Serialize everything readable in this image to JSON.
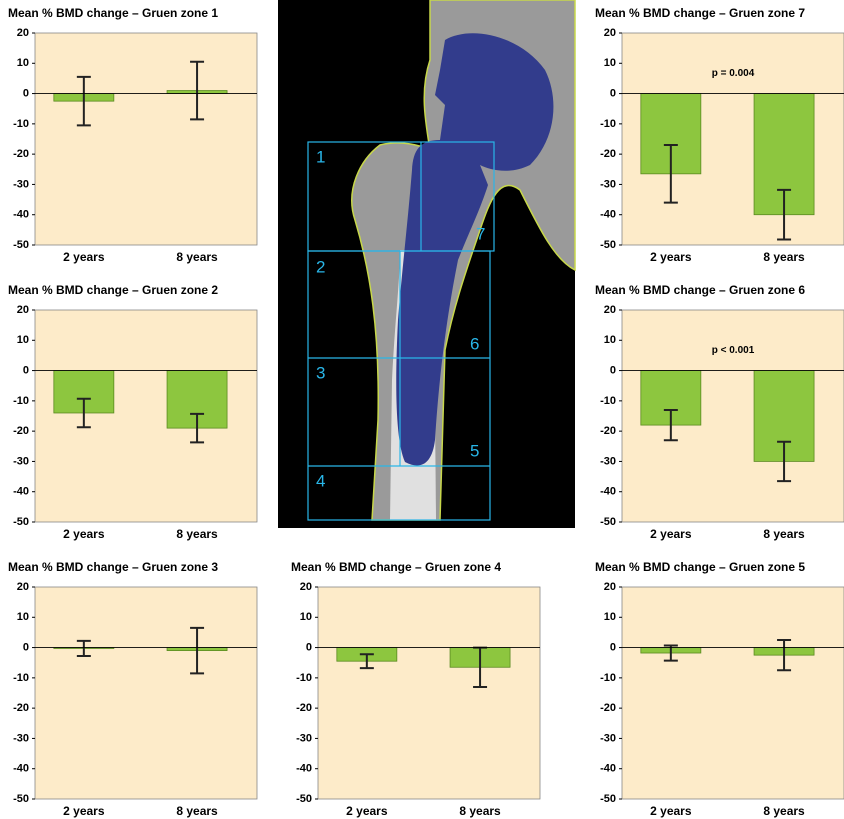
{
  "chart_data": [
    {
      "type": "bar",
      "title": "Mean % BMD change – Gruen zone 1",
      "categories": [
        "2 years",
        "8 years"
      ],
      "values": [
        -2.5,
        1
      ],
      "errors": [
        8,
        9.5
      ],
      "color": "#8dc63f",
      "ylim": [
        -50,
        20
      ],
      "yticks": [
        -50,
        -40,
        -30,
        -20,
        -10,
        0,
        10,
        20
      ]
    },
    {
      "type": "bar",
      "title": "Mean % BMD change – Gruen zone 2",
      "categories": [
        "2 years",
        "8 years"
      ],
      "values": [
        -14,
        -19
      ],
      "errors": [
        4.7,
        4.7
      ],
      "color": "#8dc63f",
      "ylim": [
        -50,
        20
      ],
      "yticks": [
        -50,
        -40,
        -30,
        -20,
        -10,
        0,
        10,
        20
      ]
    },
    {
      "type": "bar",
      "title": "Mean % BMD change – Gruen zone 3",
      "categories": [
        "2 years",
        "8 years"
      ],
      "values": [
        -0.3,
        -1
      ],
      "errors": [
        2.5,
        7.5
      ],
      "color": "#8dc63f",
      "ylim": [
        -50,
        20
      ],
      "yticks": [
        -50,
        -40,
        -30,
        -20,
        -10,
        0,
        10,
        20
      ]
    },
    {
      "type": "bar",
      "title": "Mean % BMD change – Gruen zone 4",
      "categories": [
        "2 years",
        "8 years"
      ],
      "values": [
        -4.5,
        -6.5
      ],
      "errors": [
        2.3,
        6.5
      ],
      "color": "#8dc63f",
      "ylim": [
        -50,
        20
      ],
      "yticks": [
        -50,
        -40,
        -30,
        -20,
        -10,
        0,
        10,
        20
      ]
    },
    {
      "type": "bar",
      "title": "Mean % BMD change – Gruen zone 5",
      "categories": [
        "2 years",
        "8 years"
      ],
      "values": [
        -1.8,
        -2.5
      ],
      "errors": [
        2.5,
        5
      ],
      "color": "#8dc63f",
      "ylim": [
        -50,
        20
      ],
      "yticks": [
        -50,
        -40,
        -30,
        -20,
        -10,
        0,
        10,
        20
      ]
    },
    {
      "type": "bar",
      "title": "Mean % BMD change – Gruen zone 6",
      "categories": [
        "2 years",
        "8 years"
      ],
      "values": [
        -18,
        -30
      ],
      "errors": [
        5,
        6.5
      ],
      "color": "#8dc63f",
      "ylim": [
        -50,
        20
      ],
      "yticks": [
        -50,
        -40,
        -30,
        -20,
        -10,
        0,
        10,
        20
      ],
      "annotation": "p < 0.001"
    },
    {
      "type": "bar",
      "title": "Mean % BMD change – Gruen zone 7",
      "categories": [
        "2 years",
        "8 years"
      ],
      "values": [
        -26.5,
        -40
      ],
      "errors": [
        9.5,
        8.2
      ],
      "color": "#8dc63f",
      "ylim": [
        -50,
        20
      ],
      "yticks": [
        -50,
        -40,
        -30,
        -20,
        -10,
        0,
        10,
        20
      ],
      "annotation": "p = 0.004"
    }
  ],
  "diagram": {
    "zone_labels": [
      "1",
      "2",
      "3",
      "4",
      "5",
      "6",
      "7"
    ]
  }
}
